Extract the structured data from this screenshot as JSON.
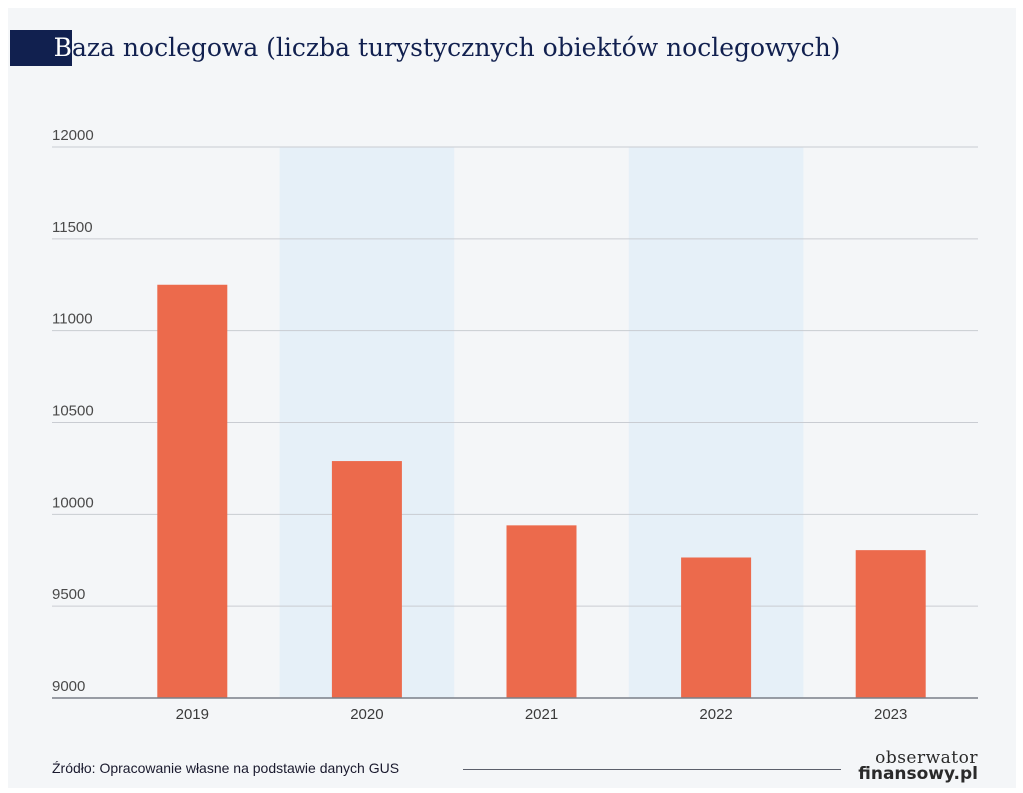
{
  "header": {
    "title_first_letter": "B",
    "title_rest": "aza noclegowa (liczba turystycznych obiektów noclegowych)"
  },
  "chart_data": {
    "type": "bar",
    "categories": [
      "2019",
      "2020",
      "2021",
      "2022",
      "2023"
    ],
    "values": [
      11250,
      10290,
      9940,
      9765,
      9805
    ],
    "xlabel": "",
    "ylabel": "",
    "ylim": [
      9000,
      12000
    ],
    "yticks": [
      9000,
      9500,
      10000,
      10500,
      11000,
      11500,
      12000
    ],
    "grid": true,
    "shaded_categories": [
      "2020",
      "2022"
    ],
    "colors": {
      "bar": "#ec6a4c",
      "shade": "#e6f0f8",
      "grid": "#c9ccd2",
      "axis": "#7a7f88"
    }
  },
  "footer": {
    "source": "Źródło: Opracowanie własne na podstawie danych GUS",
    "logo_top": "obserwator",
    "logo_bottom": "finansowy.pl"
  }
}
